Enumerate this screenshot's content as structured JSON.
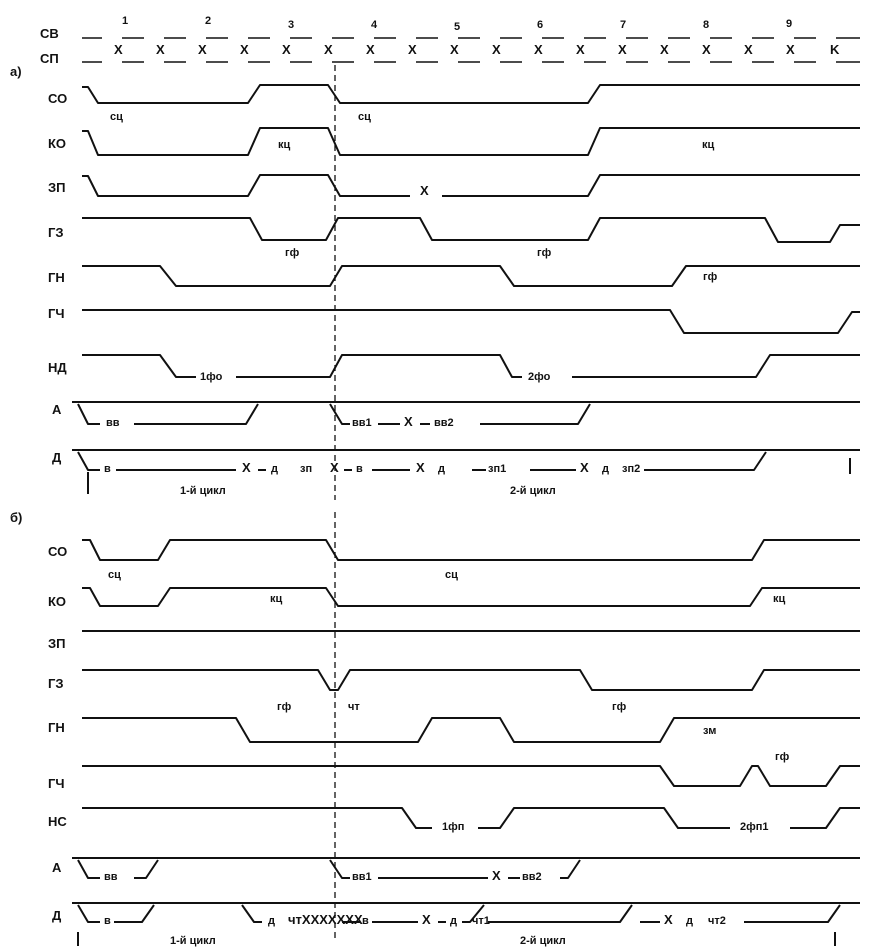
{
  "clock": {
    "labels": [
      "СВ",
      "СП"
    ],
    "numbers": [
      "1",
      "2",
      "3",
      "4",
      "5",
      "6",
      "7",
      "8",
      "9"
    ],
    "cross": "X",
    "last_cross": "K"
  },
  "parts": [
    {
      "id": "a",
      "label": "а)",
      "signals": [
        {
          "name": "СО",
          "annotations": [
            "сц",
            "сц"
          ]
        },
        {
          "name": "КО",
          "annotations": [
            "кц",
            "кц"
          ]
        },
        {
          "name": "ЗП",
          "annotations": [
            "X"
          ]
        },
        {
          "name": "ГЗ",
          "annotations": [
            "гф",
            "гф"
          ]
        },
        {
          "name": "ГН",
          "annotations": [
            "гф"
          ]
        },
        {
          "name": "ГЧ",
          "annotations": []
        },
        {
          "name": "НД",
          "annotations": [
            "1фо",
            "2фо"
          ]
        },
        {
          "name": "А",
          "annotations": [
            "вв",
            "вв1",
            "X",
            "вв2"
          ]
        },
        {
          "name": "Д",
          "annotations": [
            "в",
            "X",
            "д",
            "зп",
            "X",
            "в",
            "X",
            "д",
            "зп1",
            "X",
            "д",
            "зп2"
          ]
        }
      ],
      "cycles": [
        "1-й цикл",
        "2-й цикл"
      ]
    },
    {
      "id": "b",
      "label": "б)",
      "signals": [
        {
          "name": "СО",
          "annotations": [
            "сц",
            "сц"
          ]
        },
        {
          "name": "КО",
          "annotations": [
            "кц",
            "кц"
          ]
        },
        {
          "name": "ЗП",
          "annotations": []
        },
        {
          "name": "ГЗ",
          "annotations": [
            "гф",
            "чт",
            "гф"
          ]
        },
        {
          "name": "ГН",
          "annotations": [
            "зм"
          ]
        },
        {
          "name": "ГЧ",
          "annotations": [
            "гф"
          ]
        },
        {
          "name": "НС",
          "annotations": [
            "1фп",
            "2фп1"
          ]
        },
        {
          "name": "А",
          "annotations": [
            "вв",
            "вв1",
            "X",
            "вв2"
          ]
        },
        {
          "name": "Д",
          "annotations": [
            "в",
            "д",
            "чтXXXXXXX",
            "в",
            "X",
            "д",
            "чт1",
            "X",
            "д",
            "чт2"
          ]
        }
      ],
      "cycles": [
        "1-й цикл",
        "2-й цикл"
      ]
    }
  ]
}
